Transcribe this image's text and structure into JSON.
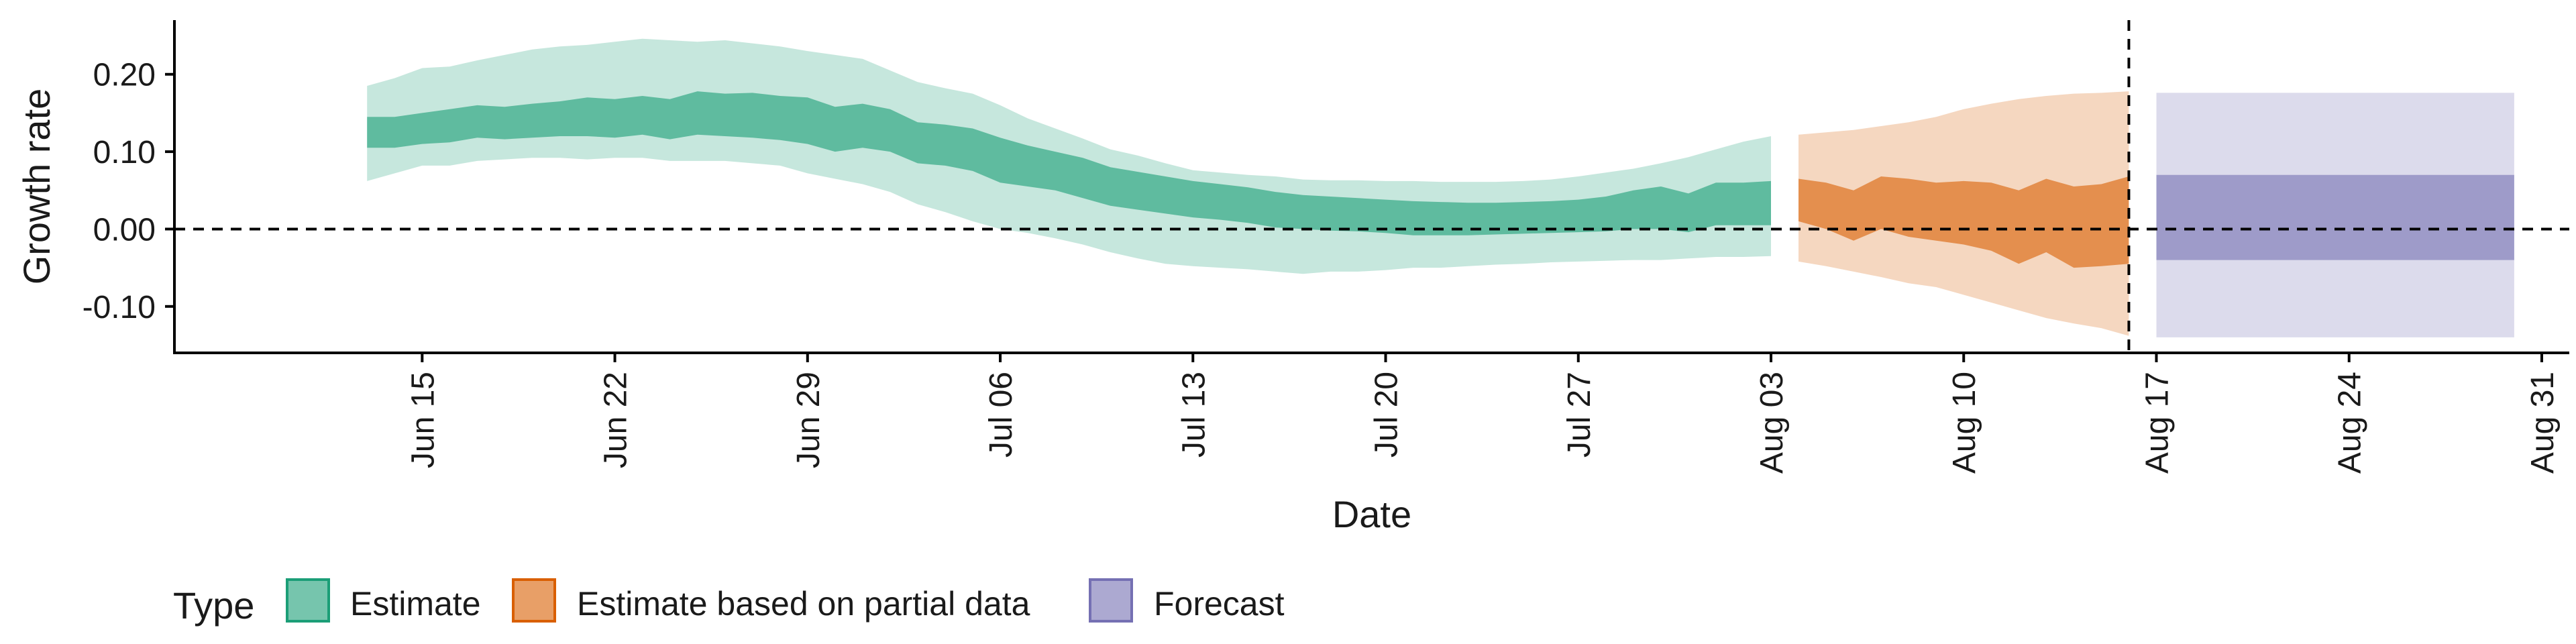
{
  "chart_data": {
    "type": "area",
    "xlabel": "Date",
    "ylabel": "Growth rate",
    "ylim": [
      -0.16,
      0.27
    ],
    "xlim": [
      "2020-06-06",
      "2020-09-01"
    ],
    "y_ticks": [
      {
        "value": -0.1,
        "label": "-0.10"
      },
      {
        "value": 0.0,
        "label": "0.00"
      },
      {
        "value": 0.1,
        "label": "0.10"
      },
      {
        "value": 0.2,
        "label": "0.20"
      }
    ],
    "x_ticks": [
      {
        "date": "2020-06-15",
        "label": "Jun 15"
      },
      {
        "date": "2020-06-22",
        "label": "Jun 22"
      },
      {
        "date": "2020-06-29",
        "label": "Jun 29"
      },
      {
        "date": "2020-07-06",
        "label": "Jul 06"
      },
      {
        "date": "2020-07-13",
        "label": "Jul 13"
      },
      {
        "date": "2020-07-20",
        "label": "Jul 20"
      },
      {
        "date": "2020-07-27",
        "label": "Jul 27"
      },
      {
        "date": "2020-08-03",
        "label": "Aug 03"
      },
      {
        "date": "2020-08-10",
        "label": "Aug 10"
      },
      {
        "date": "2020-08-17",
        "label": "Aug 17"
      },
      {
        "date": "2020-08-24",
        "label": "Aug 24"
      },
      {
        "date": "2020-08-31",
        "label": "Aug 31"
      }
    ],
    "reference_lines": {
      "horizontal_y": 0,
      "vertical_date": "2020-08-16"
    },
    "grid": false,
    "legend": {
      "title": "Type",
      "position": "bottom",
      "items": [
        {
          "label": "Estimate",
          "color": "#1b9e77"
        },
        {
          "label": "Estimate based on partial data",
          "color": "#d95f02"
        },
        {
          "label": "Forecast",
          "color": "#7570b3"
        }
      ]
    },
    "series": [
      {
        "name": "Estimate",
        "color": "#1b9e77",
        "x": [
          "2020-06-13",
          "2020-06-14",
          "2020-06-15",
          "2020-06-16",
          "2020-06-17",
          "2020-06-18",
          "2020-06-19",
          "2020-06-20",
          "2020-06-21",
          "2020-06-22",
          "2020-06-23",
          "2020-06-24",
          "2020-06-25",
          "2020-06-26",
          "2020-06-27",
          "2020-06-28",
          "2020-06-29",
          "2020-06-30",
          "2020-07-01",
          "2020-07-02",
          "2020-07-03",
          "2020-07-04",
          "2020-07-05",
          "2020-07-06",
          "2020-07-07",
          "2020-07-08",
          "2020-07-09",
          "2020-07-10",
          "2020-07-11",
          "2020-07-12",
          "2020-07-13",
          "2020-07-14",
          "2020-07-15",
          "2020-07-16",
          "2020-07-17",
          "2020-07-18",
          "2020-07-19",
          "2020-07-20",
          "2020-07-21",
          "2020-07-22",
          "2020-07-23",
          "2020-07-24",
          "2020-07-25",
          "2020-07-26",
          "2020-07-27",
          "2020-07-28",
          "2020-07-29",
          "2020-07-30",
          "2020-07-31",
          "2020-08-01",
          "2020-08-02",
          "2020-08-03"
        ],
        "lower_90": [
          0.062,
          0.072,
          0.082,
          0.082,
          0.088,
          0.09,
          0.092,
          0.092,
          0.09,
          0.092,
          0.092,
          0.088,
          0.088,
          0.088,
          0.085,
          0.082,
          0.072,
          0.065,
          0.058,
          0.048,
          0.032,
          0.022,
          0.01,
          0.0,
          -0.005,
          -0.012,
          -0.02,
          -0.03,
          -0.038,
          -0.045,
          -0.048,
          -0.05,
          -0.052,
          -0.055,
          -0.058,
          -0.055,
          -0.055,
          -0.053,
          -0.05,
          -0.05,
          -0.048,
          -0.046,
          -0.045,
          -0.043,
          -0.042,
          -0.041,
          -0.04,
          -0.04,
          -0.038,
          -0.036,
          -0.036,
          -0.035
        ],
        "upper_90": [
          0.185,
          0.195,
          0.208,
          0.21,
          0.218,
          0.225,
          0.232,
          0.236,
          0.238,
          0.242,
          0.246,
          0.244,
          0.242,
          0.244,
          0.24,
          0.236,
          0.23,
          0.225,
          0.22,
          0.205,
          0.19,
          0.182,
          0.175,
          0.16,
          0.143,
          0.13,
          0.117,
          0.103,
          0.095,
          0.085,
          0.076,
          0.073,
          0.07,
          0.068,
          0.064,
          0.063,
          0.063,
          0.062,
          0.062,
          0.061,
          0.061,
          0.061,
          0.062,
          0.064,
          0.068,
          0.073,
          0.078,
          0.085,
          0.093,
          0.103,
          0.113,
          0.12
        ],
        "lower_50": [
          0.105,
          0.105,
          0.11,
          0.112,
          0.118,
          0.116,
          0.118,
          0.12,
          0.12,
          0.118,
          0.122,
          0.116,
          0.122,
          0.12,
          0.118,
          0.115,
          0.11,
          0.1,
          0.105,
          0.1,
          0.085,
          0.082,
          0.075,
          0.06,
          0.055,
          0.05,
          0.04,
          0.03,
          0.025,
          0.02,
          0.015,
          0.012,
          0.008,
          0.002,
          0.0,
          -0.002,
          -0.003,
          -0.005,
          -0.008,
          -0.008,
          -0.008,
          -0.007,
          -0.006,
          -0.005,
          -0.004,
          -0.003,
          0.0,
          0.0,
          -0.004,
          0.005,
          0.005,
          0.005
        ],
        "upper_50": [
          0.145,
          0.145,
          0.15,
          0.155,
          0.16,
          0.158,
          0.162,
          0.165,
          0.17,
          0.168,
          0.172,
          0.168,
          0.178,
          0.175,
          0.176,
          0.172,
          0.17,
          0.158,
          0.162,
          0.155,
          0.138,
          0.135,
          0.13,
          0.118,
          0.108,
          0.1,
          0.092,
          0.08,
          0.074,
          0.068,
          0.062,
          0.058,
          0.054,
          0.048,
          0.044,
          0.042,
          0.04,
          0.038,
          0.036,
          0.035,
          0.034,
          0.034,
          0.035,
          0.036,
          0.038,
          0.042,
          0.05,
          0.055,
          0.046,
          0.06,
          0.06,
          0.062
        ]
      },
      {
        "name": "Estimate based on partial data",
        "color": "#d95f02",
        "x": [
          "2020-08-04",
          "2020-08-05",
          "2020-08-06",
          "2020-08-07",
          "2020-08-08",
          "2020-08-09",
          "2020-08-10",
          "2020-08-11",
          "2020-08-12",
          "2020-08-13",
          "2020-08-14",
          "2020-08-15",
          "2020-08-16"
        ],
        "lower_90": [
          -0.042,
          -0.048,
          -0.055,
          -0.062,
          -0.07,
          -0.075,
          -0.085,
          -0.095,
          -0.105,
          -0.115,
          -0.122,
          -0.128,
          -0.138
        ],
        "upper_90": [
          0.122,
          0.125,
          0.128,
          0.133,
          0.138,
          0.145,
          0.155,
          0.162,
          0.168,
          0.172,
          0.175,
          0.176,
          0.178
        ],
        "lower_50": [
          0.01,
          0.0,
          -0.015,
          0.0,
          -0.01,
          -0.015,
          -0.02,
          -0.028,
          -0.045,
          -0.03,
          -0.05,
          -0.048,
          -0.045
        ],
        "upper_50": [
          0.065,
          0.06,
          0.05,
          0.068,
          0.065,
          0.06,
          0.062,
          0.06,
          0.05,
          0.065,
          0.055,
          0.058,
          0.068
        ]
      },
      {
        "name": "Forecast",
        "color": "#7570b3",
        "x": [
          "2020-08-17",
          "2020-08-30"
        ],
        "lower_90": [
          -0.14,
          -0.14
        ],
        "upper_90": [
          0.176,
          0.176
        ],
        "lower_50": [
          -0.04,
          -0.04
        ],
        "upper_50": [
          0.07,
          0.07
        ]
      }
    ]
  }
}
